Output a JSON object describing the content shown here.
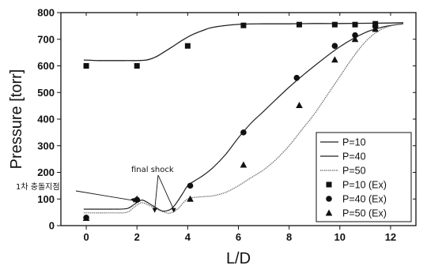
{
  "chart_data": {
    "type": "line",
    "xlabel": "L/D",
    "ylabel": "Pressure [torr]",
    "xlim": [
      -1,
      13
    ],
    "ylim": [
      0,
      800
    ],
    "xticks": [
      "0",
      "2",
      "4",
      "6",
      "8",
      "10",
      "12"
    ],
    "yticks": [
      "0",
      "100",
      "200",
      "300",
      "400",
      "500",
      "600",
      "700",
      "800"
    ],
    "grid": false,
    "legend_position": "bottom-right",
    "line_series": [
      {
        "name": "P=10",
        "x": [
          -0.1,
          0.5,
          1.5,
          2.3,
          2.7,
          3.0,
          3.4,
          3.8,
          4.2,
          4.6,
          5.0,
          6.0,
          7.0,
          8.0,
          9.0,
          10.0,
          11.0,
          12.0,
          12.5
        ],
        "y": [
          622,
          620,
          620,
          621,
          632,
          648,
          672,
          697,
          718,
          733,
          745,
          756,
          758,
          758,
          759,
          759,
          760,
          761,
          762
        ]
      },
      {
        "name": "P=40",
        "x": [
          -0.1,
          1.0,
          1.6,
          1.9,
          2.2,
          2.6,
          3.0,
          3.3,
          3.5,
          3.8,
          4.0,
          4.3,
          4.6,
          5.0,
          5.5,
          6.0,
          6.5,
          7.0,
          8.0,
          9.0,
          10.0,
          11.0,
          11.8,
          12.5
        ],
        "y": [
          62,
          62,
          64,
          80,
          96,
          76,
          55,
          60,
          78,
          120,
          150,
          170,
          188,
          218,
          268,
          330,
          385,
          430,
          520,
          600,
          672,
          725,
          748,
          758
        ]
      },
      {
        "name": "P=50",
        "x": [
          -0.1,
          1.0,
          1.6,
          1.9,
          2.2,
          2.6,
          3.0,
          3.3,
          3.6,
          4.0,
          4.5,
          5.0,
          5.5,
          6.0,
          6.5,
          7.0,
          7.5,
          8.0,
          8.5,
          9.0,
          9.5,
          10.0,
          10.5,
          11.0,
          11.5,
          12.0,
          12.5
        ],
        "y": [
          48,
          48,
          50,
          70,
          86,
          70,
          53,
          47,
          62,
          100,
          108,
          112,
          125,
          150,
          180,
          210,
          250,
          300,
          360,
          420,
          490,
          560,
          630,
          690,
          730,
          750,
          758
        ]
      }
    ],
    "marker_series": [
      {
        "name": "P=10 (Ex)",
        "marker": "square",
        "x": [
          0,
          2,
          4,
          6.2,
          8.4,
          9.8,
          10.6,
          11.4
        ],
        "y": [
          600,
          600,
          675,
          752,
          755,
          755,
          755,
          758
        ]
      },
      {
        "name": "P=40 (Ex)",
        "marker": "circle",
        "x": [
          0,
          2,
          4.1,
          6.2,
          8.3,
          9.8,
          10.6,
          11.4
        ],
        "y": [
          30,
          97,
          150,
          350,
          555,
          675,
          715,
          748
        ]
      },
      {
        "name": "P=50 (Ex)",
        "marker": "triangle",
        "x": [
          0,
          2,
          4.1,
          6.2,
          8.4,
          9.8,
          10.6,
          11.4
        ],
        "y": [
          28,
          100,
          100,
          228,
          452,
          623,
          700,
          738
        ]
      }
    ],
    "annotations": [
      {
        "text": "1차 충돌지점",
        "arrow_to_x": [
          1.9
        ],
        "arrow_to_y": 85
      },
      {
        "text": "final shock",
        "arrow_to_x": [
          2.7,
          3.45
        ],
        "arrow_to_y": 48
      }
    ]
  }
}
